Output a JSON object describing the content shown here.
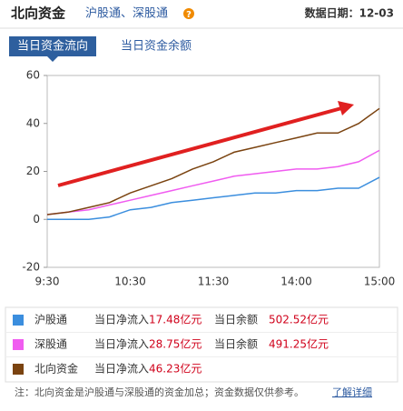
{
  "header": {
    "title": "北向资金",
    "subtitle": "沪股通、深股通",
    "help": "?",
    "date": "数据日期：12-03"
  },
  "tabs": [
    "当日资金流向",
    "当日资金余额"
  ],
  "chart_data": {
    "type": "line",
    "categories": [
      "9:30",
      null,
      null,
      null,
      "10:30",
      null,
      null,
      null,
      "11:30",
      null,
      null,
      null,
      "14:00",
      null,
      null,
      null,
      "15:00"
    ],
    "series": [
      {
        "name": "沪股通",
        "color": "#3b8ede",
        "values": [
          0,
          0,
          0,
          1,
          4,
          5,
          7,
          8,
          9,
          10,
          11,
          11,
          12,
          12,
          13,
          13,
          17.48
        ]
      },
      {
        "name": "深股通",
        "color": "#f05cf0",
        "values": [
          2,
          3,
          4,
          6,
          8,
          10,
          12,
          14,
          16,
          18,
          19,
          20,
          21,
          21,
          22,
          24,
          28.75
        ]
      },
      {
        "name": "北向资金",
        "color": "#7a4310",
        "values": [
          2,
          3,
          5,
          7,
          11,
          14,
          17,
          21,
          24,
          28,
          30,
          32,
          34,
          36,
          36,
          40,
          46.23
        ]
      }
    ],
    "ylim": [
      -20,
      60
    ],
    "yticks": [
      -20,
      0,
      20,
      40,
      60
    ],
    "grid": false
  },
  "summary": {
    "rows": [
      {
        "inflow_label": "当日净流入",
        "inflow": "17.48亿元",
        "balance_label": "当日余额",
        "balance": "502.52亿元"
      },
      {
        "inflow_label": "当日净流入",
        "inflow": "28.75亿元",
        "balance_label": "当日余额",
        "balance": "491.25亿元"
      },
      {
        "inflow_label": "当日净流入",
        "inflow": "46.23亿元"
      }
    ]
  },
  "footer": {
    "note": "注：北向资金是沪股通与深股通的资金加总；资金数据仅供参考。",
    "link": "了解详细"
  }
}
